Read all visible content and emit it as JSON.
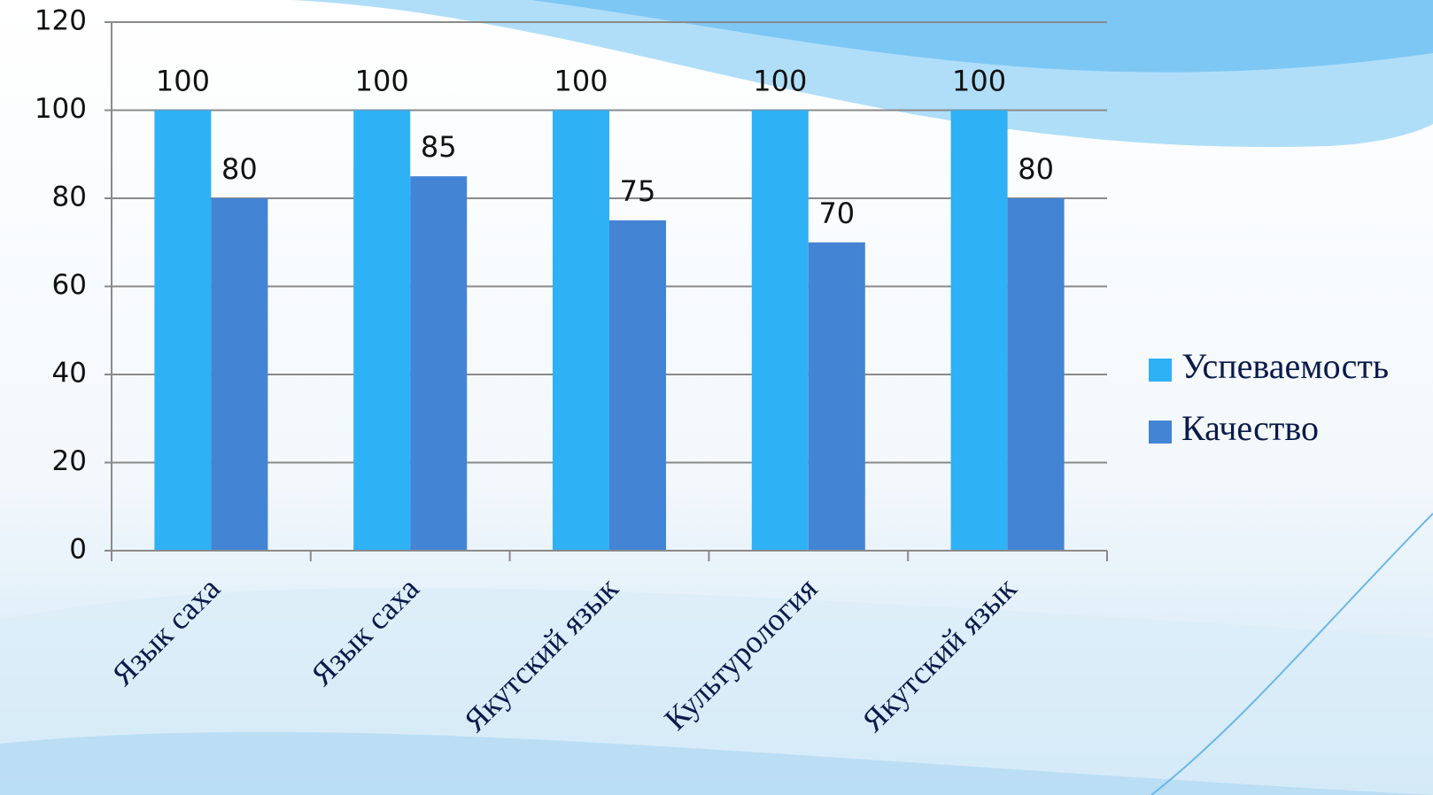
{
  "chart_data": {
    "type": "bar",
    "categories": [
      "Язык саха",
      "Язык саха",
      "Якутский язык",
      "Культурология",
      "Якутский язык"
    ],
    "series": [
      {
        "name": "Успеваемость",
        "color": "#2fb1f5",
        "values": [
          100,
          100,
          100,
          100,
          100
        ]
      },
      {
        "name": "Качество",
        "color": "#4484d4",
        "values": [
          80,
          85,
          75,
          70,
          80
        ]
      }
    ],
    "ylim": [
      0,
      120
    ],
    "yticks": [
      0,
      20,
      40,
      60,
      80,
      100,
      120
    ],
    "grid": true,
    "legend": "right"
  }
}
